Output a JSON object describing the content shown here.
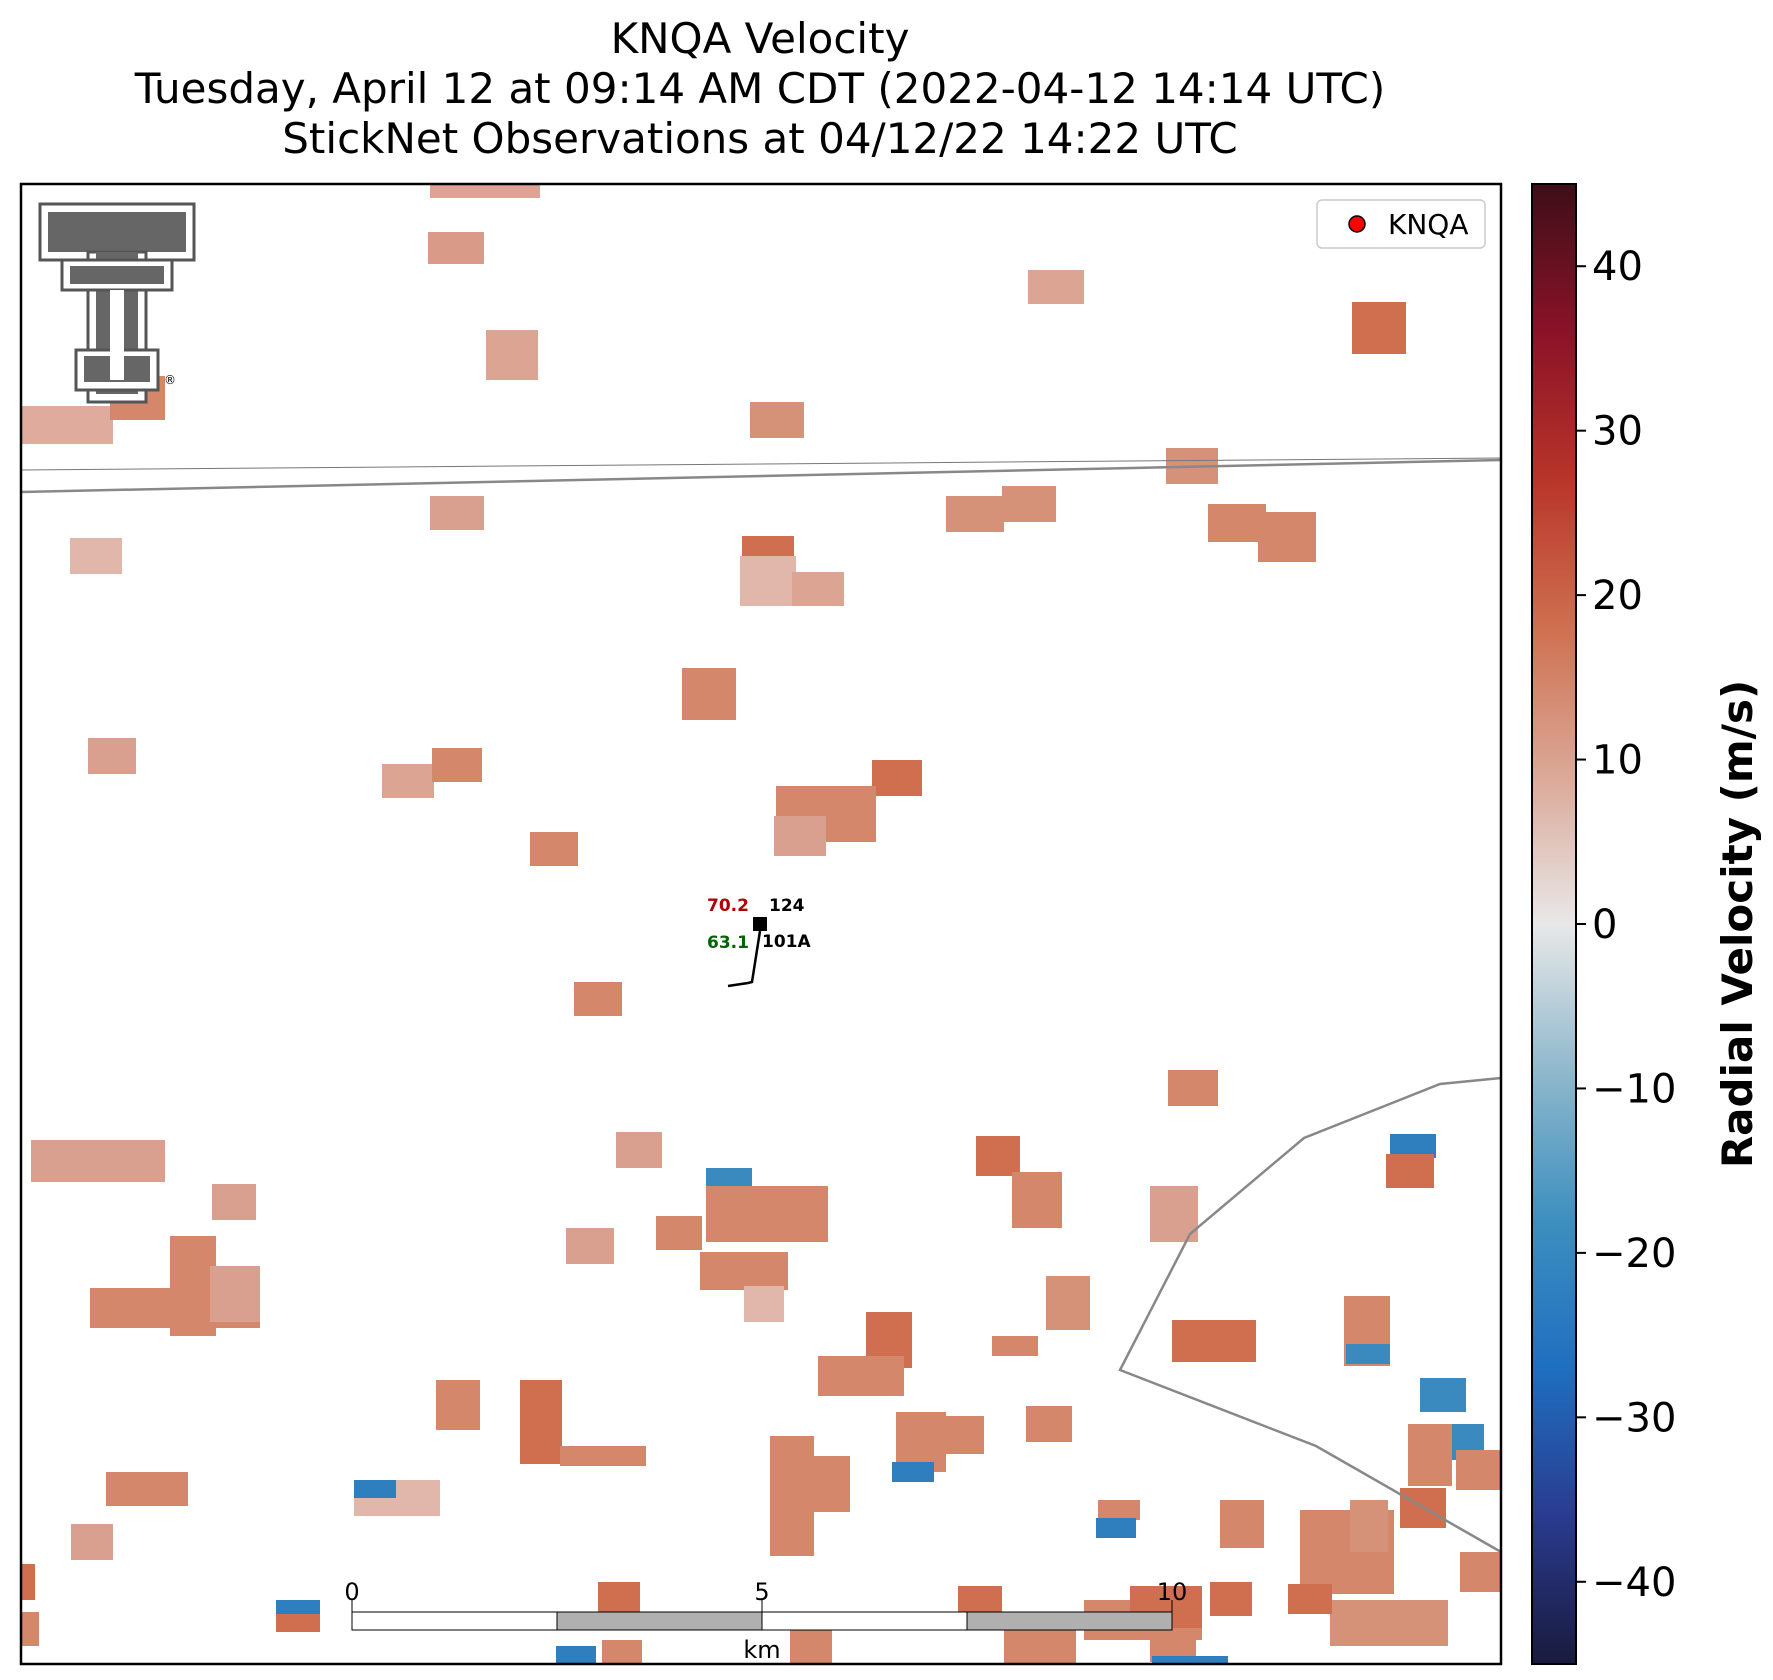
{
  "title": {
    "line1": "KNQA Velocity",
    "line2": "Tuesday, April 12 at 09:14 AM CDT (2022-04-12 14:14 UTC)",
    "line3": "StickNet Observations at 04/12/22 14:22 UTC"
  },
  "legend": {
    "label": "KNQA",
    "marker_color": "#ff0000"
  },
  "colorbar": {
    "label": "Radial Velocity (m/s)",
    "min": -45,
    "max": 45,
    "ticks": [
      40,
      30,
      20,
      10,
      0,
      -10,
      -20,
      -30,
      -40
    ],
    "tick_labels": [
      "40",
      "30",
      "20",
      "10",
      "0",
      "−10",
      "−20",
      "−30",
      "−40"
    ],
    "colors": [
      "#1a1a3d",
      "#2a3b8f",
      "#1f6fc0",
      "#3d8fbf",
      "#8fb8cc",
      "#e8e8e8",
      "#dba898",
      "#cf7050",
      "#b8352a",
      "#8b1228",
      "#3d0e18"
    ]
  },
  "scale_bar": {
    "unit": "km",
    "labels": [
      "0",
      "5",
      "10"
    ]
  },
  "station": {
    "id": "101A",
    "temperature": "70.2",
    "dewpoint": "63.1",
    "pressure": "124",
    "temperature_color": "#b00000",
    "dewpoint_color": "#006400"
  },
  "logo": {
    "name": "texas-tech-double-t-logo",
    "registered": "®"
  }
}
